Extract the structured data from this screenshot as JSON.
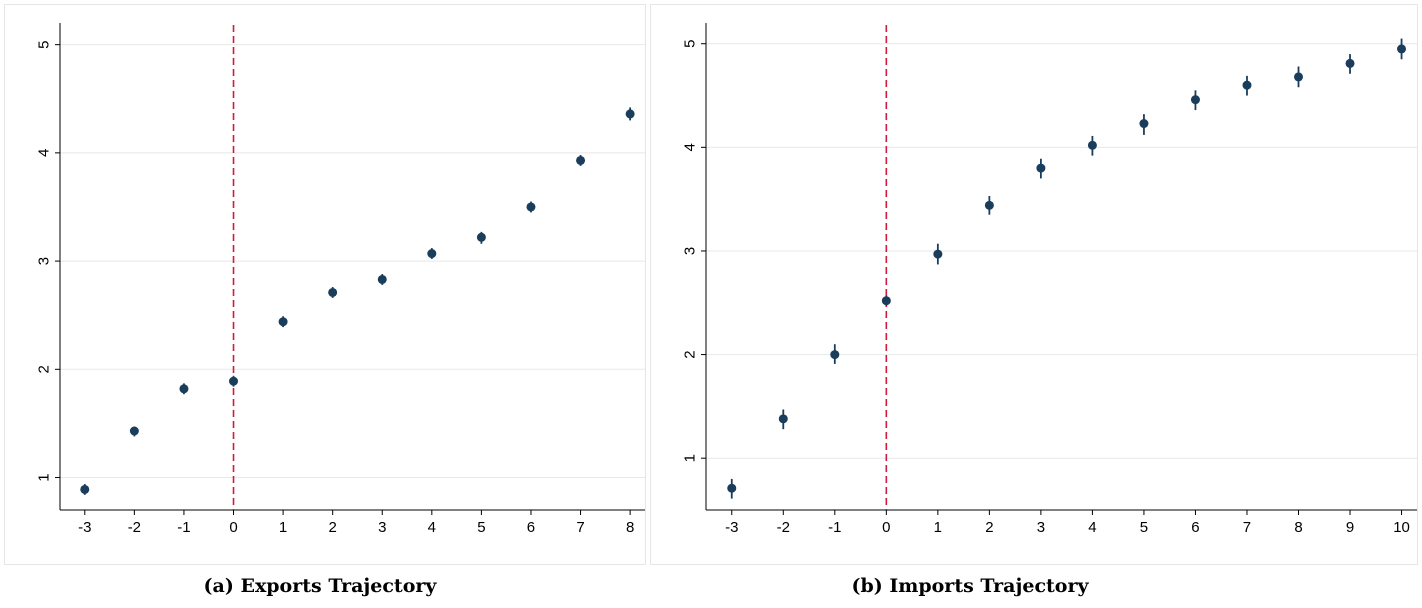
{
  "chart_data": [
    {
      "type": "scatter",
      "caption": "(a) Exports Trajectory",
      "x_ticks": [
        "-3",
        "-2",
        "-1",
        "0",
        "1",
        "2",
        "3",
        "4",
        "5",
        "6",
        "7",
        "8"
      ],
      "y_ticks": [
        "1",
        "2",
        "3",
        "4",
        "5"
      ],
      "xlim": [
        -3.5,
        8.3
      ],
      "ylim": [
        0.7,
        5.2
      ],
      "grid": true,
      "reference_line": {
        "x": 0,
        "style": "dashed",
        "color": "#d11a3c"
      },
      "marker_color": "#1a3d5c",
      "points": [
        {
          "x": -3,
          "y": 0.89,
          "lo": 0.84,
          "hi": 0.94
        },
        {
          "x": -2,
          "y": 1.43,
          "lo": 1.38,
          "hi": 1.47
        },
        {
          "x": -1,
          "y": 1.82,
          "lo": 1.77,
          "hi": 1.87
        },
        {
          "x": 0,
          "y": 1.89,
          "lo": 1.84,
          "hi": 1.94
        },
        {
          "x": 1,
          "y": 2.44,
          "lo": 2.39,
          "hi": 2.49
        },
        {
          "x": 2,
          "y": 2.71,
          "lo": 2.66,
          "hi": 2.76
        },
        {
          "x": 3,
          "y": 2.83,
          "lo": 2.78,
          "hi": 2.88
        },
        {
          "x": 4,
          "y": 3.07,
          "lo": 3.02,
          "hi": 3.12
        },
        {
          "x": 5,
          "y": 3.22,
          "lo": 3.16,
          "hi": 3.27
        },
        {
          "x": 6,
          "y": 3.5,
          "lo": 3.45,
          "hi": 3.55
        },
        {
          "x": 7,
          "y": 3.93,
          "lo": 3.88,
          "hi": 3.98
        },
        {
          "x": 8,
          "y": 4.36,
          "lo": 4.3,
          "hi": 4.42
        }
      ]
    },
    {
      "type": "scatter",
      "caption": "(b) Imports Trajectory",
      "x_ticks": [
        "-3",
        "-2",
        "-1",
        "0",
        "1",
        "2",
        "3",
        "4",
        "5",
        "6",
        "7",
        "8",
        "9",
        "10"
      ],
      "y_ticks": [
        "1",
        "2",
        "3",
        "4",
        "5"
      ],
      "xlim": [
        -3.5,
        10.3
      ],
      "ylim": [
        0.5,
        5.2
      ],
      "grid": true,
      "reference_line": {
        "x": 0,
        "style": "dashed",
        "color": "#d11a3c"
      },
      "marker_color": "#1a3d5c",
      "points": [
        {
          "x": -3,
          "y": 0.71,
          "lo": 0.61,
          "hi": 0.8
        },
        {
          "x": -2,
          "y": 1.38,
          "lo": 1.28,
          "hi": 1.47
        },
        {
          "x": -1,
          "y": 2.0,
          "lo": 1.91,
          "hi": 2.1
        },
        {
          "x": 0,
          "y": 2.52,
          "lo": 2.47,
          "hi": 2.57
        },
        {
          "x": 1,
          "y": 2.97,
          "lo": 2.87,
          "hi": 3.07
        },
        {
          "x": 2,
          "y": 3.44,
          "lo": 3.35,
          "hi": 3.53
        },
        {
          "x": 3,
          "y": 3.8,
          "lo": 3.7,
          "hi": 3.89
        },
        {
          "x": 4,
          "y": 4.02,
          "lo": 3.92,
          "hi": 4.11
        },
        {
          "x": 5,
          "y": 4.23,
          "lo": 4.12,
          "hi": 4.32
        },
        {
          "x": 6,
          "y": 4.46,
          "lo": 4.36,
          "hi": 4.55
        },
        {
          "x": 7,
          "y": 4.6,
          "lo": 4.5,
          "hi": 4.69
        },
        {
          "x": 8,
          "y": 4.68,
          "lo": 4.58,
          "hi": 4.78
        },
        {
          "x": 9,
          "y": 4.81,
          "lo": 4.71,
          "hi": 4.9
        },
        {
          "x": 10,
          "y": 4.95,
          "lo": 4.85,
          "hi": 5.05
        }
      ]
    }
  ]
}
